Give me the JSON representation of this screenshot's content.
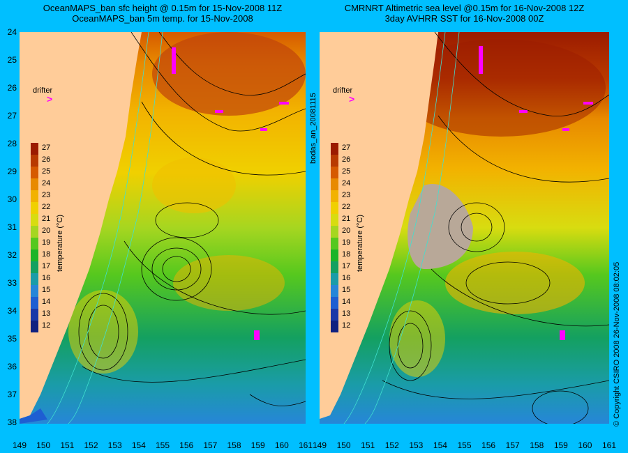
{
  "titles": {
    "left_line1": "OceanMAPS_ban sfc height @ 0.15m for 15-Nov-2008 11Z",
    "left_line2": "OceanMAPS_ban 5m temp. for 15-Nov-2008",
    "right_line1": "CMRNRT Altimetric sea level  @0.15m  for 16-Nov-2008 12Z",
    "right_line2": "3day AVHRR SST for 16-Nov-2008 00Z"
  },
  "latitude_labels": [
    "24",
    "25",
    "26",
    "27",
    "28",
    "29",
    "30",
    "31",
    "32",
    "33",
    "34",
    "35",
    "36",
    "37",
    "38"
  ],
  "longitude_labels": [
    "149",
    "150",
    "151",
    "152",
    "153",
    "154",
    "155",
    "156",
    "157",
    "158",
    "159",
    "160",
    "161"
  ],
  "colorbar": {
    "labels": [
      "27",
      "26",
      "25",
      "24",
      "23",
      "22",
      "21",
      "20",
      "19",
      "18",
      "17",
      "16",
      "15",
      "14",
      "13",
      "12"
    ],
    "title": "temperature (°C)",
    "colors": [
      "#9b1b00",
      "#b83a00",
      "#d65a00",
      "#e88a00",
      "#f2b200",
      "#f0d000",
      "#d8dc10",
      "#a6d620",
      "#56c81e",
      "#1cb428",
      "#14a060",
      "#1a9ca8",
      "#2686d8",
      "#1e5ed2",
      "#1a38a8",
      "#102080"
    ]
  },
  "drifter_label": "drifter",
  "analysis_label": "bodas_an_20081115",
  "copyright": "© Copyright CSIRO 2008   26-Nov-2008 08:02:05"
}
